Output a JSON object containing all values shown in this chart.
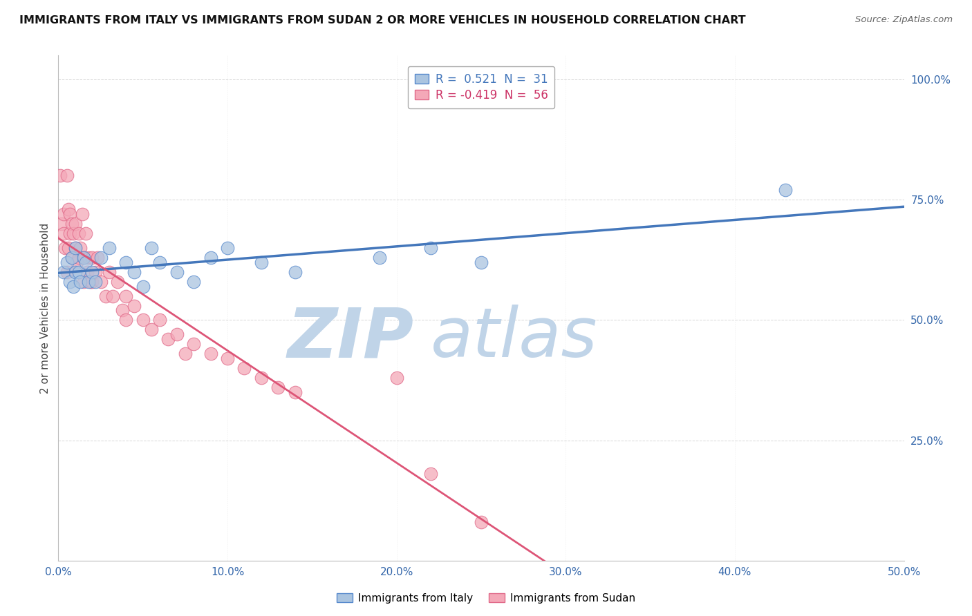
{
  "title": "IMMIGRANTS FROM ITALY VS IMMIGRANTS FROM SUDAN 2 OR MORE VEHICLES IN HOUSEHOLD CORRELATION CHART",
  "source": "Source: ZipAtlas.com",
  "ylabel": "2 or more Vehicles in Household",
  "xlim": [
    0.0,
    0.5
  ],
  "ylim": [
    0.0,
    1.05
  ],
  "xtick_labels": [
    "0.0%",
    "",
    "",
    "",
    "",
    "10.0%",
    "",
    "",
    "",
    "",
    "20.0%",
    "",
    "",
    "",
    "",
    "30.0%",
    "",
    "",
    "",
    "",
    "40.0%",
    "",
    "",
    "",
    "",
    "50.0%"
  ],
  "xtick_vals": [
    0.0,
    0.02,
    0.04,
    0.06,
    0.08,
    0.1,
    0.12,
    0.14,
    0.16,
    0.18,
    0.2,
    0.22,
    0.24,
    0.26,
    0.28,
    0.3,
    0.32,
    0.34,
    0.36,
    0.38,
    0.4,
    0.42,
    0.44,
    0.46,
    0.48,
    0.5
  ],
  "xtick_major_labels": [
    "0.0%",
    "10.0%",
    "20.0%",
    "30.0%",
    "40.0%",
    "50.0%"
  ],
  "xtick_major_vals": [
    0.0,
    0.1,
    0.2,
    0.3,
    0.4,
    0.5
  ],
  "ytick_labels": [
    "25.0%",
    "50.0%",
    "75.0%",
    "100.0%"
  ],
  "ytick_vals": [
    0.25,
    0.5,
    0.75,
    1.0
  ],
  "italy_R": 0.521,
  "italy_N": 31,
  "sudan_R": -0.419,
  "sudan_N": 56,
  "italy_color": "#aac4e0",
  "sudan_color": "#f4a8b8",
  "italy_edge_color": "#5588cc",
  "sudan_edge_color": "#e06888",
  "italy_line_color": "#4477bb",
  "sudan_line_color": "#dd5577",
  "watermark_zip_color": "#c0d4e8",
  "watermark_atlas_color": "#c0d4e8",
  "legend_text_italy_color": "#4477bb",
  "legend_text_sudan_color": "#cc3366",
  "italy_x": [
    0.003,
    0.005,
    0.007,
    0.008,
    0.009,
    0.01,
    0.01,
    0.012,
    0.013,
    0.015,
    0.016,
    0.018,
    0.02,
    0.022,
    0.025,
    0.03,
    0.04,
    0.045,
    0.05,
    0.055,
    0.06,
    0.07,
    0.08,
    0.09,
    0.1,
    0.12,
    0.14,
    0.19,
    0.22,
    0.25,
    0.43
  ],
  "italy_y": [
    0.6,
    0.62,
    0.58,
    0.63,
    0.57,
    0.6,
    0.65,
    0.6,
    0.58,
    0.63,
    0.62,
    0.58,
    0.6,
    0.58,
    0.63,
    0.65,
    0.62,
    0.6,
    0.57,
    0.65,
    0.62,
    0.6,
    0.58,
    0.63,
    0.65,
    0.62,
    0.6,
    0.63,
    0.65,
    0.62,
    0.77
  ],
  "sudan_x": [
    0.001,
    0.002,
    0.003,
    0.003,
    0.004,
    0.005,
    0.005,
    0.006,
    0.006,
    0.007,
    0.007,
    0.008,
    0.008,
    0.009,
    0.01,
    0.01,
    0.011,
    0.012,
    0.012,
    0.013,
    0.014,
    0.015,
    0.015,
    0.016,
    0.017,
    0.018,
    0.019,
    0.02,
    0.02,
    0.022,
    0.023,
    0.025,
    0.028,
    0.03,
    0.032,
    0.035,
    0.038,
    0.04,
    0.04,
    0.045,
    0.05,
    0.055,
    0.06,
    0.065,
    0.07,
    0.075,
    0.08,
    0.09,
    0.1,
    0.11,
    0.12,
    0.13,
    0.14,
    0.2,
    0.22,
    0.25
  ],
  "sudan_y": [
    0.8,
    0.7,
    0.68,
    0.72,
    0.65,
    0.8,
    0.6,
    0.73,
    0.65,
    0.68,
    0.72,
    0.7,
    0.63,
    0.68,
    0.65,
    0.7,
    0.62,
    0.63,
    0.68,
    0.65,
    0.72,
    0.63,
    0.58,
    0.68,
    0.6,
    0.63,
    0.58,
    0.63,
    0.58,
    0.6,
    0.63,
    0.58,
    0.55,
    0.6,
    0.55,
    0.58,
    0.52,
    0.55,
    0.5,
    0.53,
    0.5,
    0.48,
    0.5,
    0.46,
    0.47,
    0.43,
    0.45,
    0.43,
    0.42,
    0.4,
    0.38,
    0.36,
    0.35,
    0.38,
    0.18,
    0.08
  ]
}
